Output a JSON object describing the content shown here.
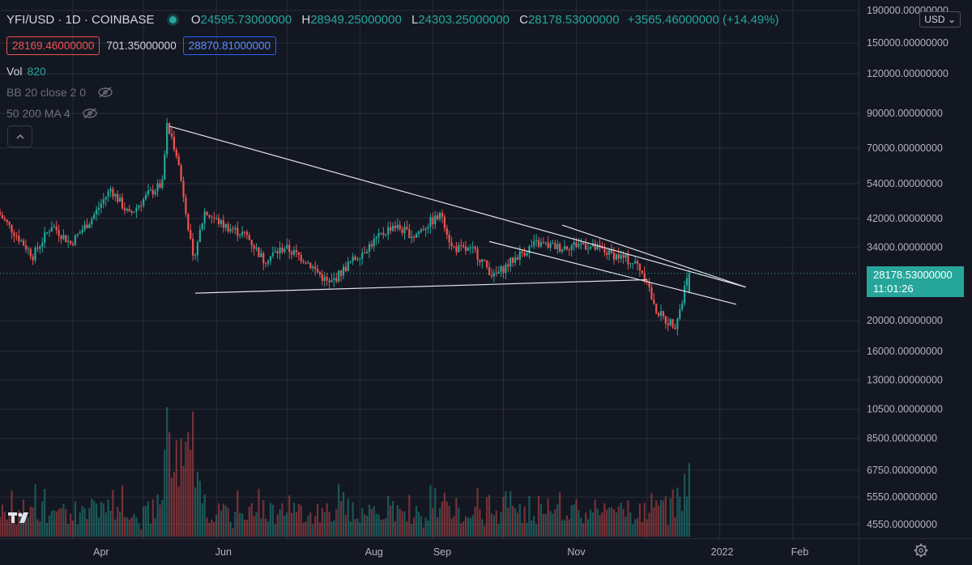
{
  "header": {
    "symbol": "YFI/USD · 1D · COINBASE",
    "open_label": "O",
    "open": "24595.73000000",
    "high_label": "H",
    "high": "28949.25000000",
    "low_label": "L",
    "low": "24303.25000000",
    "close_label": "C",
    "close": "28178.53000000",
    "change": "+3565.46000000 (+14.49%)"
  },
  "quote": {
    "bid": "28169.46000000",
    "spread": "701.35000000",
    "ask": "28870.81000000"
  },
  "indicators": {
    "vol_label": "Vol",
    "vol_value": "820",
    "bb": "BB 20 close 2 0",
    "ma": "50 200 MA 4"
  },
  "currency_button": "USD",
  "price_tag": {
    "price": "28178.53000000",
    "countdown": "11:01:26"
  },
  "colors": {
    "background": "#131722",
    "up": "#26a69a",
    "down": "#ef5350",
    "text": "#d1d4dc",
    "trendline": "#e0e3eb"
  },
  "icons": {
    "visibility": "eye-off-icon",
    "collapse": "chevron-up-icon",
    "settings": "gear-icon",
    "brand": "tradingview-logo"
  },
  "chart_data": {
    "type": "candlestick",
    "title": "YFI/USD · 1D · COINBASE",
    "y_scale": "log",
    "ylim": [
      4000,
      190000
    ],
    "y_ticks": [
      190000,
      150000,
      120000,
      90000,
      70000,
      54000,
      42000,
      34000,
      20000,
      16000,
      13000,
      10500,
      8500,
      6750,
      5550,
      4550
    ],
    "y_tick_labels": [
      "190000.00000000",
      "150000.00000000",
      "120000.00000000",
      "90000.00000000",
      "70000.00000000",
      "54000.00000000",
      "42000.00000000",
      "34000.00000000",
      "20000.00000000",
      "16000.00000000",
      "13000.00000000",
      "10500.00000000",
      "8500.00000000",
      "6750.00000000",
      "5550.00000000",
      "4550.00000000"
    ],
    "x_labels": [
      "Apr",
      "Jun",
      "Aug",
      "Sep",
      "Nov",
      "2022",
      "Feb"
    ],
    "xlim": [
      "2021-03-01",
      "2022-03-01"
    ],
    "grid": true,
    "price_path": [
      [
        "2021-03-01",
        44000
      ],
      [
        "2021-03-08",
        38000
      ],
      [
        "2021-03-16",
        32000
      ],
      [
        "2021-03-24",
        40000
      ],
      [
        "2021-04-01",
        35000
      ],
      [
        "2021-04-10",
        42000
      ],
      [
        "2021-04-18",
        52000
      ],
      [
        "2021-04-26",
        43000
      ],
      [
        "2021-05-04",
        50000
      ],
      [
        "2021-05-10",
        54000
      ],
      [
        "2021-05-12",
        82000
      ],
      [
        "2021-05-16",
        68000
      ],
      [
        "2021-05-20",
        45000
      ],
      [
        "2021-05-23",
        31000
      ],
      [
        "2021-05-28",
        44000
      ],
      [
        "2021-06-05",
        40000
      ],
      [
        "2021-06-15",
        37000
      ],
      [
        "2021-06-22",
        31000
      ],
      [
        "2021-07-01",
        34000
      ],
      [
        "2021-07-10",
        31000
      ],
      [
        "2021-07-20",
        26000
      ],
      [
        "2021-07-28",
        30000
      ],
      [
        "2021-08-05",
        34000
      ],
      [
        "2021-08-16",
        40000
      ],
      [
        "2021-08-25",
        37000
      ],
      [
        "2021-09-01",
        41000
      ],
      [
        "2021-09-06",
        43000
      ],
      [
        "2021-09-10",
        34000
      ],
      [
        "2021-09-20",
        33000
      ],
      [
        "2021-09-28",
        27500
      ],
      [
        "2021-10-08",
        32000
      ],
      [
        "2021-10-16",
        35000
      ],
      [
        "2021-10-26",
        34000
      ],
      [
        "2021-11-04",
        35000
      ],
      [
        "2021-11-14",
        33000
      ],
      [
        "2021-11-22",
        31500
      ],
      [
        "2021-11-28",
        30000
      ],
      [
        "2021-12-02",
        27000
      ],
      [
        "2021-12-05",
        22000
      ],
      [
        "2021-12-10",
        20000
      ],
      [
        "2021-12-14",
        19500
      ],
      [
        "2021-12-17",
        23000
      ],
      [
        "2021-12-19",
        28178
      ]
    ],
    "last_candle": {
      "date": "2021-12-19",
      "open": 24595.73,
      "high": 28949.25,
      "low": 24303.25,
      "close": 28178.53
    },
    "volume_label": "Vol",
    "volume_last": 820,
    "trendlines": [
      {
        "name": "descending-resistance",
        "from": [
          "2021-05-12",
          82000
        ],
        "to": [
          "2022-01-12",
          25500
        ]
      },
      {
        "name": "horizontal-support",
        "from": [
          "2021-05-23",
          24400
        ],
        "to": [
          "2021-12-01",
          26900
        ]
      },
      {
        "name": "channel-upper",
        "from": [
          "2021-10-26",
          40000
        ],
        "to": [
          "2022-01-12",
          25500
        ]
      },
      {
        "name": "channel-lower",
        "from": [
          "2021-09-25",
          35500
        ],
        "to": [
          "2022-01-08",
          22500
        ]
      }
    ]
  }
}
